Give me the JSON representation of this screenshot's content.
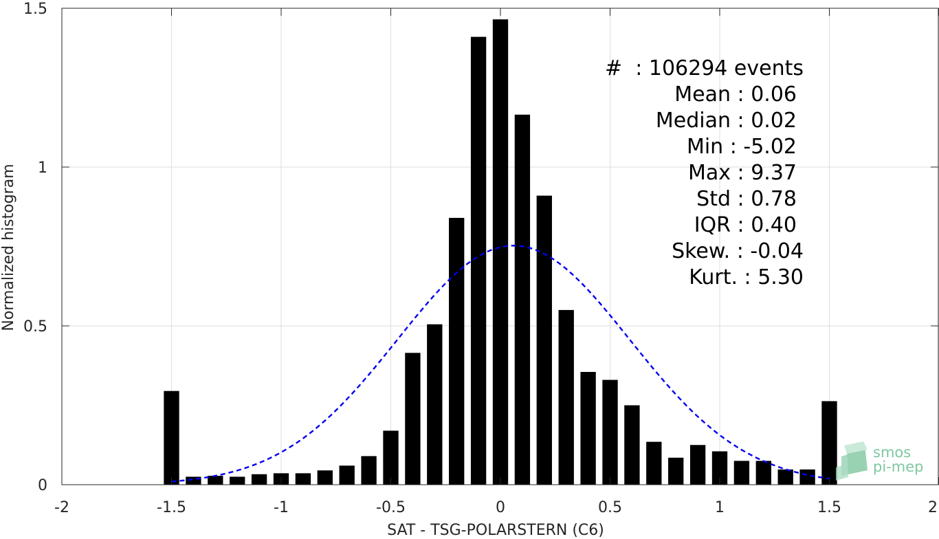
{
  "chart_data": {
    "type": "bar",
    "xlabel": "SAT - TSG-POLARSTERN (C6)",
    "ylabel": "Normalized histogram",
    "xlim": [
      -2,
      2
    ],
    "ylim": [
      0,
      1.5
    ],
    "xticks": [
      -2,
      -1.5,
      -1,
      -0.5,
      0,
      0.5,
      1,
      1.5,
      2
    ],
    "xtick_labels": [
      "-2",
      "-1.5",
      "-1",
      "-0.5",
      "0",
      "0.5",
      "1",
      "1.5",
      "2"
    ],
    "yticks": [
      0,
      0.5,
      1,
      1.5
    ],
    "ytick_labels": [
      "0",
      "0.5",
      "1",
      "1.5"
    ],
    "grid": true,
    "bar_color": "#000000",
    "bar_width": 0.07,
    "x": [
      -1.5,
      -1.4,
      -1.3,
      -1.2,
      -1.1,
      -1.0,
      -0.9,
      -0.8,
      -0.7,
      -0.6,
      -0.5,
      -0.4,
      -0.3,
      -0.2,
      -0.1,
      0.0,
      0.1,
      0.2,
      0.3,
      0.4,
      0.5,
      0.6,
      0.7,
      0.8,
      0.9,
      1.0,
      1.1,
      1.2,
      1.3,
      1.4,
      1.5
    ],
    "values": [
      0.295,
      0.025,
      0.028,
      0.025,
      0.033,
      0.036,
      0.036,
      0.045,
      0.06,
      0.09,
      0.17,
      0.415,
      0.505,
      0.84,
      1.41,
      1.465,
      1.165,
      0.91,
      0.55,
      0.355,
      0.33,
      0.25,
      0.135,
      0.085,
      0.125,
      0.105,
      0.075,
      0.075,
      0.048,
      0.048,
      0.263
    ],
    "fit": {
      "type": "normal",
      "mean": 0.06,
      "std": 0.53,
      "x_range": [
        -1.5,
        1.5
      ],
      "color": "#0000ee",
      "style": "dashed"
    },
    "annotation_lines": [
      "#  : 106294 events",
      "Mean : 0.06",
      "Median : 0.02",
      "Min : -5.02",
      "Max : 9.37",
      "Std : 0.78",
      "IQR : 0.40",
      "Skew. : -0.04",
      "Kurt. : 5.30"
    ]
  },
  "logo": {
    "line1": "smos",
    "line2": "pi-mep",
    "color": "#7fc8a0"
  }
}
